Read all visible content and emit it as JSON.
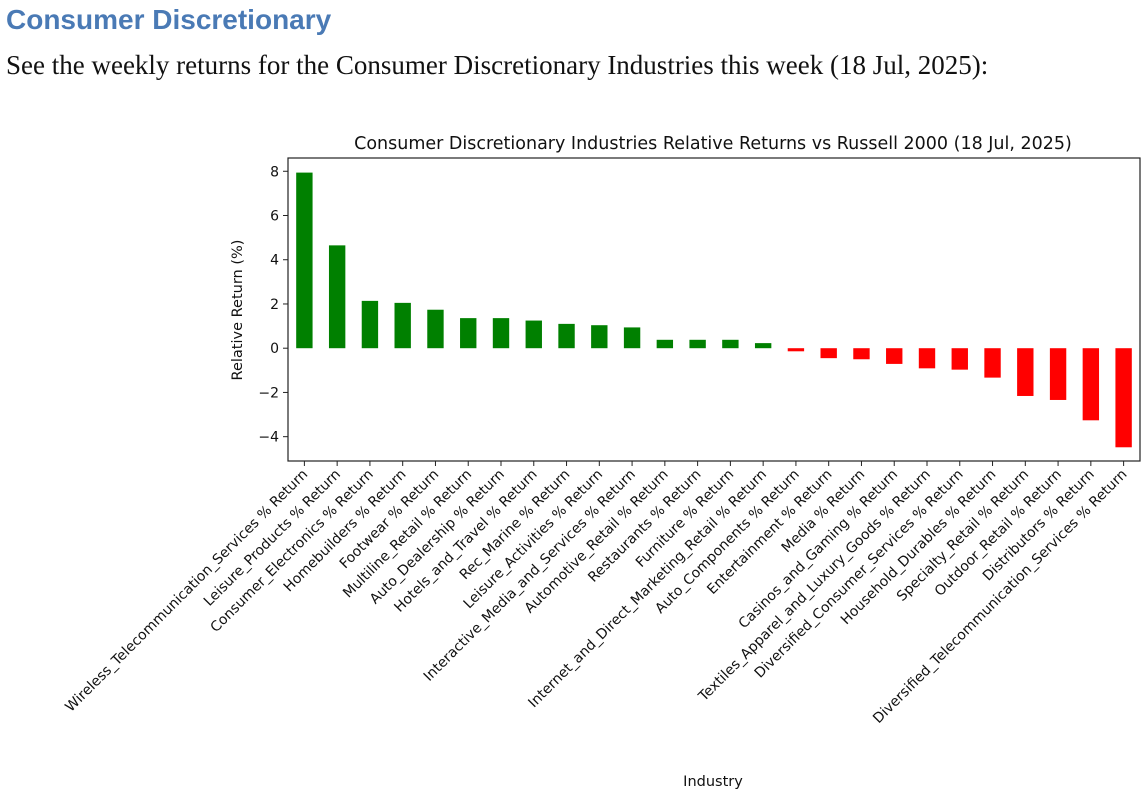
{
  "heading": "Consumer Discretionary",
  "intro": "See the weekly returns for the Consumer Discretionary Industries this week (18 Jul, 2025):",
  "chart_data": {
    "type": "bar",
    "title": "Consumer Discretionary Industries Relative Returns vs Russell 2000 (18 Jul, 2025)",
    "xlabel": "Industry",
    "ylabel": "Relative Return (%)",
    "ylim": [
      -5.1,
      8.6
    ],
    "yticks": [
      -4,
      -2,
      0,
      2,
      4,
      6,
      8
    ],
    "ytick_labels": [
      "−4",
      "−2",
      "0",
      "2",
      "4",
      "6",
      "8"
    ],
    "grid": false,
    "colors": {
      "positive": "#008000",
      "negative": "#ff0000"
    },
    "categories": [
      "Wireless_Telecommunication_Services % Return",
      "Leisure_Products % Return",
      "Consumer_Electronics % Return",
      "Homebuilders % Return",
      "Footwear % Return",
      "Multiline_Retail % Return",
      "Auto_Dealership % Return",
      "Hotels_and_Travel % Return",
      "Rec_Marine % Return",
      "Leisure_Activities % Return",
      "Interactive_Media_and_Services % Return",
      "Automotive_Retail % Return",
      "Restaurants % Return",
      "Furniture % Return",
      "Internet_and_Direct_Marketing_Retail % Return",
      "Auto_Components % Return",
      "Entertainment % Return",
      "Media % Return",
      "Casinos_and_Gaming % Return",
      "Textiles_Apparel_and_Luxury_Goods % Return",
      "Diversified_Consumer_Services % Return",
      "Household_Durables % Return",
      "Specialty_Retail % Return",
      "Outdoor_Retail % Return",
      "Distributors % Return",
      "Diversified_Telecommunication_Services % Return"
    ],
    "values": [
      7.94,
      4.65,
      2.14,
      2.05,
      1.74,
      1.36,
      1.36,
      1.25,
      1.1,
      1.04,
      0.94,
      0.38,
      0.38,
      0.38,
      0.23,
      -0.14,
      -0.45,
      -0.5,
      -0.71,
      -0.91,
      -0.97,
      -1.33,
      -2.16,
      -2.34,
      -3.26,
      -4.48
    ]
  }
}
